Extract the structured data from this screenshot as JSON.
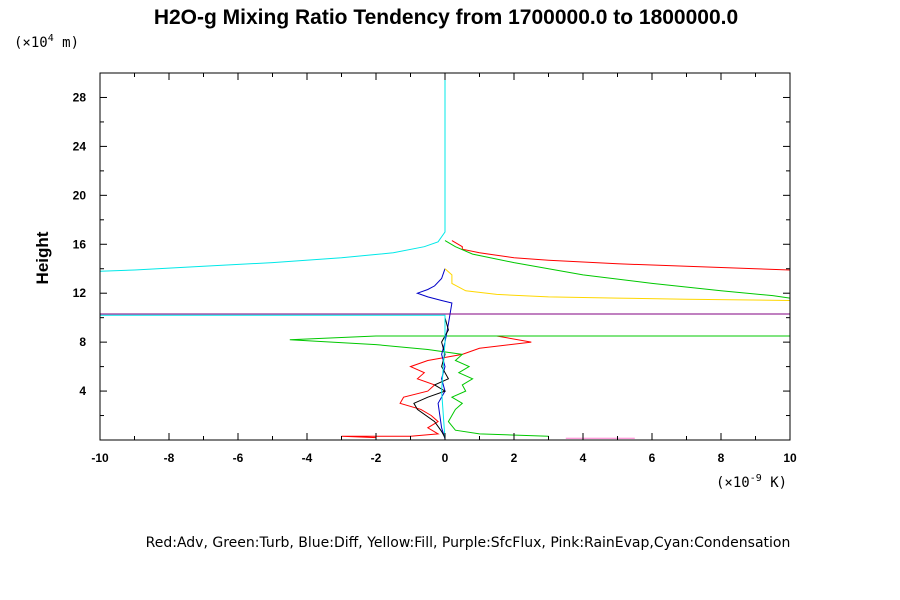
{
  "chart_data": {
    "type": "line",
    "title": "H2O-g Mixing Ratio Tendency from 1700000.0 to 1800000.0",
    "ylabel": "Height",
    "y_unit": {
      "prefix": "(×10",
      "exp": "4",
      "suffix": " m)"
    },
    "x_unit": {
      "prefix": "(×10",
      "exp": "-9",
      "suffix": " K)"
    },
    "xlim": [
      -10,
      10
    ],
    "ylim": [
      0,
      30
    ],
    "x_ticks": [
      "-10",
      "-8",
      "-6",
      "-4",
      "-2",
      "0",
      "2",
      "4",
      "6",
      "8",
      "10"
    ],
    "y_ticks": [
      "4",
      "8",
      "12",
      "16",
      "20",
      "24",
      "28"
    ],
    "legend_text": "Red:Adv, Green:Turb, Blue:Diff, Yellow:Fill, Purple:SfcFlux, Pink:RainEvap,Cyan:Condensation",
    "series": [
      {
        "color": "#ff0000",
        "x": [
          0.2,
          0.5,
          0.5,
          1.0,
          1.5,
          2.0,
          3.0,
          5.0,
          7.0,
          9.0,
          10.0,
          10.0,
          1.5,
          2.5,
          1.0,
          0.5,
          -0.5,
          -1.0,
          -0.6,
          -0.8,
          -0.3,
          -0.5,
          -1.2,
          -1.3,
          -0.7,
          -0.4,
          -0.2,
          -0.5,
          -0.2,
          -1.0,
          -3.0,
          -2.0
        ],
        "y": [
          16.3,
          15.8,
          15.6,
          15.3,
          15.1,
          14.9,
          14.7,
          14.4,
          14.2,
          14.0,
          13.9,
          8.5,
          8.5,
          8.0,
          7.5,
          7.0,
          6.5,
          6.0,
          5.5,
          5.0,
          4.5,
          4.0,
          3.5,
          3.0,
          2.5,
          2.0,
          1.5,
          1.0,
          0.5,
          0.3,
          0.3,
          0.2
        ]
      },
      {
        "color": "#00c800",
        "x": [
          0.0,
          0.3,
          0.8,
          2.0,
          4.0,
          6.0,
          8.0,
          9.5,
          10.0,
          10.0,
          -2.0,
          -4.5,
          -2.0,
          -0.5,
          0.5,
          0.3,
          0.7,
          0.4,
          0.8,
          0.5,
          0.6,
          0.2,
          0.5,
          0.3,
          0.1,
          0.3,
          1.0,
          3.0
        ],
        "y": [
          16.3,
          15.8,
          15.2,
          14.5,
          13.5,
          12.8,
          12.2,
          11.8,
          11.6,
          8.5,
          8.5,
          8.2,
          7.8,
          7.4,
          7.0,
          6.5,
          6.0,
          5.5,
          5.0,
          4.5,
          4.0,
          3.5,
          3.0,
          2.5,
          1.5,
          0.8,
          0.5,
          0.3
        ]
      },
      {
        "color": "#0000c8",
        "x": [
          0.0,
          -0.1,
          -0.3,
          -0.5,
          -0.8,
          -0.5,
          -0.1,
          0.2,
          0.1,
          0.0,
          -0.1,
          0.0,
          -0.1,
          0.0,
          -0.2,
          -0.1,
          0.0
        ],
        "y": [
          14.0,
          13.2,
          12.6,
          12.3,
          12.0,
          11.7,
          11.4,
          11.2,
          9.5,
          8.0,
          7.0,
          6.0,
          5.0,
          4.0,
          3.0,
          1.0,
          0.1
        ]
      },
      {
        "color": "#000000",
        "x": [
          0.0,
          0.1,
          -0.1,
          0.0,
          -0.1,
          0.1,
          -0.3,
          0.0,
          -0.5,
          -0.9,
          -0.8,
          -0.3,
          -0.1,
          0.0
        ],
        "y": [
          10.0,
          9.0,
          8.0,
          7.0,
          6.0,
          5.0,
          4.5,
          4.0,
          3.5,
          3.0,
          2.5,
          1.5,
          0.7,
          0.2
        ]
      },
      {
        "color": "#ffd700",
        "x": [
          0.0,
          0.2,
          0.2,
          0.6,
          1.5,
          3.0,
          5.0,
          7.0,
          10.0
        ],
        "y": [
          14.0,
          13.5,
          12.8,
          12.2,
          11.9,
          11.7,
          11.6,
          11.5,
          11.4
        ]
      },
      {
        "color": "#00e8e8",
        "x": [
          0.0,
          0.0,
          -0.2,
          -0.6,
          -1.5,
          -3.0,
          -5.0,
          -7.0,
          -9.0,
          -10.0,
          -10.0,
          0.0,
          0.0,
          -0.1,
          0.0
        ],
        "y": [
          30.0,
          17.0,
          16.2,
          15.8,
          15.3,
          14.9,
          14.5,
          14.2,
          13.9,
          13.8,
          10.2,
          10.2,
          8.0,
          4.0,
          0.1
        ]
      },
      {
        "color": "#ff7fd0",
        "x": [
          3.5,
          4.5,
          5.5
        ],
        "y": [
          0.15,
          0.15,
          0.15
        ]
      },
      {
        "color": "#800080",
        "x": [
          -10.0,
          10.0
        ],
        "y": [
          10.3,
          10.3
        ]
      }
    ]
  }
}
